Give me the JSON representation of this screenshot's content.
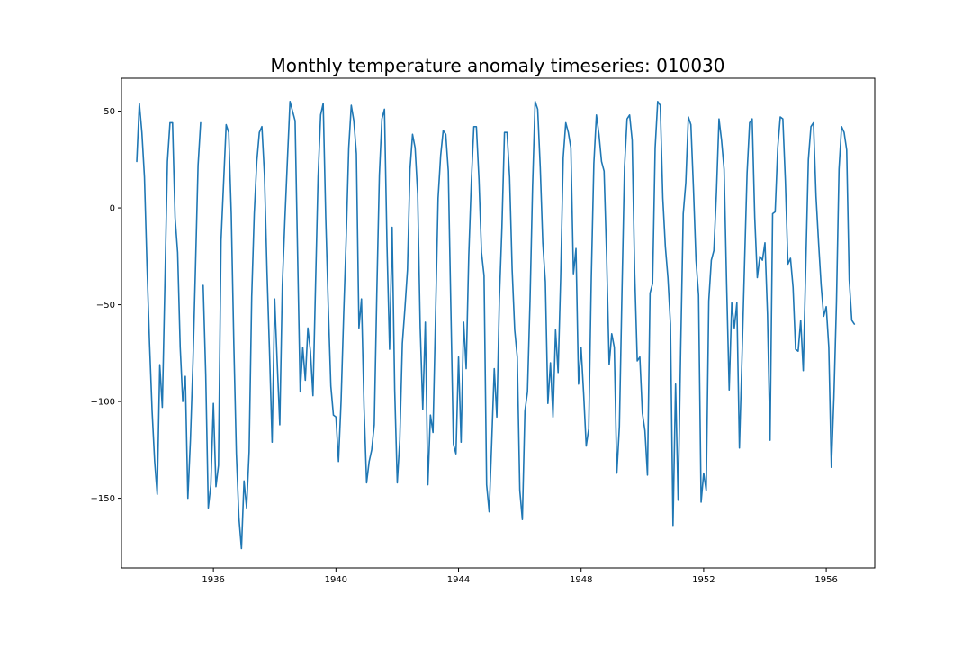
{
  "chart_data": {
    "type": "line",
    "title": "Monthly temperature anomaly timeseries: 010030",
    "xlabel": "",
    "ylabel": "",
    "x_start": "1933-07",
    "x_step": "month",
    "xlim": [
      "1933-01",
      "1957-08"
    ],
    "ylim": [
      -186,
      67
    ],
    "x_ticks": [
      {
        "value": "1936-01",
        "label": "1936"
      },
      {
        "value": "1940-01",
        "label": "1940"
      },
      {
        "value": "1944-01",
        "label": "1944"
      },
      {
        "value": "1948-01",
        "label": "1948"
      },
      {
        "value": "1952-01",
        "label": "1952"
      },
      {
        "value": "1956-01",
        "label": "1956"
      }
    ],
    "y_ticks": [
      {
        "value": 50,
        "label": "50"
      },
      {
        "value": 0,
        "label": "0"
      },
      {
        "value": -50,
        "label": "−50"
      },
      {
        "value": -100,
        "label": "−100"
      },
      {
        "value": -150,
        "label": "−150"
      }
    ],
    "grid": false,
    "legend": "none",
    "series": [
      {
        "color": "#1f77b4",
        "segments": [
          [
            24,
            54,
            39,
            16,
            -30,
            -70,
            -105,
            -131,
            -148,
            -81,
            -103,
            -40,
            24,
            44,
            44,
            -5,
            -23,
            -72,
            -100,
            -87,
            -150,
            -120,
            -80,
            -30,
            22,
            44
          ],
          [
            -40,
            -86,
            -155,
            -143,
            -101,
            -144,
            -133,
            -17,
            13,
            43,
            39,
            -3,
            -70,
            -127,
            -160,
            -176,
            -141,
            -155,
            -126,
            -46,
            -3,
            24,
            39,
            42,
            17,
            -33,
            -75,
            -121,
            -47,
            -80,
            -112,
            -40,
            -6,
            25,
            55,
            50,
            45,
            -25,
            -95,
            -72,
            -89,
            -62,
            -74,
            -97,
            -40,
            16,
            48,
            54,
            -5,
            -51,
            -92,
            -107,
            -108,
            -131,
            -100,
            -56,
            -16,
            31,
            53,
            45,
            28,
            -62,
            -47,
            -103,
            -142,
            -131,
            -125,
            -112,
            -44,
            17,
            46,
            51,
            -20,
            -73,
            -10,
            -94,
            -142,
            -120,
            -70,
            -52,
            -32,
            20,
            38,
            31,
            7,
            -62,
            -104,
            -59,
            -143,
            -107,
            -116,
            -56,
            5,
            27,
            40,
            38,
            19,
            -52,
            -122,
            -127,
            -77,
            -121,
            -59,
            -83,
            -25,
            13,
            42,
            42,
            15,
            -23,
            -35,
            -143,
            -157,
            -121,
            -83,
            -108,
            -47,
            -10,
            39,
            39,
            16,
            -32,
            -63,
            -77,
            -146,
            -161,
            -105,
            -95,
            -48,
            11,
            55,
            51,
            21,
            -18,
            -38,
            -101,
            -80,
            -108,
            -63,
            -85,
            -36,
            26,
            44,
            39,
            31,
            -34,
            -21,
            -91,
            -72,
            -96,
            -123,
            -114,
            -36,
            23,
            48,
            38,
            24,
            19,
            -25,
            -81,
            -65,
            -72,
            -137,
            -113,
            -44,
            21,
            46,
            48,
            35,
            -34,
            -79,
            -77,
            -106,
            -115,
            -138,
            -44,
            -39,
            31,
            55,
            53,
            5,
            -20,
            -36,
            -60,
            -164,
            -91,
            -151,
            -73,
            -3,
            13,
            47,
            43,
            10,
            -27,
            -45,
            -152,
            -137,
            -146,
            -48,
            -27,
            -22,
            8,
            46,
            35,
            20,
            -40,
            -94,
            -49,
            -62,
            -49,
            -124,
            -78,
            -29,
            18,
            44,
            46,
            -5,
            -36,
            -25,
            -27,
            -18,
            -55,
            -120,
            -3,
            -2,
            31,
            47,
            46,
            14,
            -29,
            -26,
            -41,
            -73,
            -74,
            -58,
            -84,
            -29,
            25,
            42,
            44,
            6,
            -18,
            -40,
            -56,
            -51,
            -72,
            -134,
            -98,
            -49,
            20,
            42,
            39,
            30,
            -37,
            -58,
            -60
          ]
        ]
      }
    ]
  }
}
